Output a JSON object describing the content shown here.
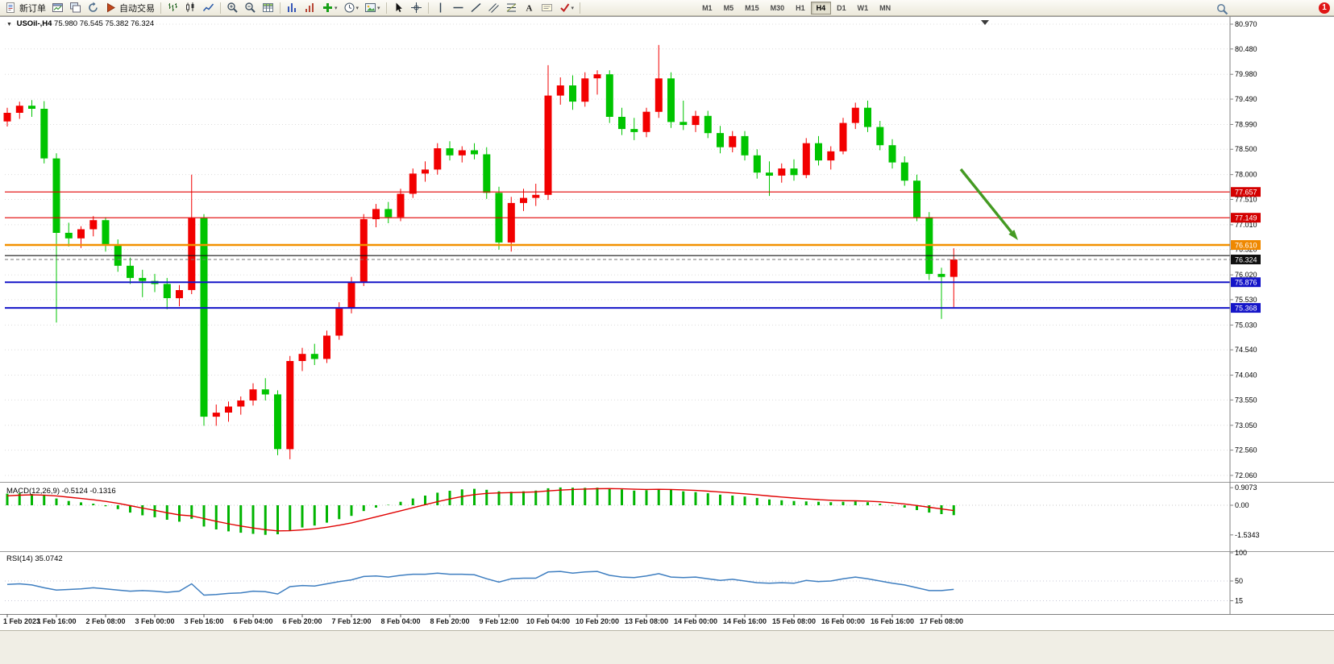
{
  "toolbar": {
    "buttons": [
      {
        "name": "new-order-button",
        "icon": "doc",
        "label": "新订单"
      },
      {
        "name": "chart-window-button",
        "icon": "window"
      },
      {
        "name": "profiles-button",
        "icon": "monitor"
      },
      {
        "name": "refresh-button",
        "icon": "refresh"
      },
      {
        "name": "auto-trading-button",
        "icon": "play",
        "label": "自动交易"
      },
      {
        "sep": true
      },
      {
        "name": "bar-chart-button",
        "icon": "bars"
      },
      {
        "name": "candlestick-chart-button",
        "icon": "candles"
      },
      {
        "name": "line-chart-button",
        "icon": "linechart"
      },
      {
        "sep": true
      },
      {
        "name": "zoom-in-button",
        "icon": "zoomin"
      },
      {
        "name": "zoom-out-button",
        "icon": "zoomout"
      },
      {
        "name": "grid-button",
        "icon": "grid"
      },
      {
        "sep": true
      },
      {
        "name": "indicator-window-button",
        "icon": "tile"
      },
      {
        "name": "arrange-window-button",
        "icon": "tile2"
      },
      {
        "name": "indicators-button",
        "icon": "addind",
        "dd": true
      },
      {
        "name": "periods-button",
        "icon": "clock",
        "dd": true
      },
      {
        "name": "templates-button",
        "icon": "template",
        "dd": true
      },
      {
        "sep": true
      },
      {
        "name": "cursor-button",
        "icon": "cursor"
      },
      {
        "name": "crosshair-button",
        "icon": "crosshair"
      },
      {
        "sep": true
      },
      {
        "name": "vertical-line-button",
        "icon": "vline"
      },
      {
        "name": "horizontal-line-button",
        "icon": "hline"
      },
      {
        "name": "trendline-button",
        "icon": "tline"
      },
      {
        "name": "channel-button",
        "icon": "channel"
      },
      {
        "name": "fibonacci-button",
        "icon": "fibo"
      },
      {
        "name": "text-button",
        "icon": "textA"
      },
      {
        "name": "text-label-button",
        "icon": "label"
      },
      {
        "name": "arrows-button",
        "icon": "arrows",
        "dd": true
      },
      {
        "sep": true
      }
    ],
    "timeframes": [
      "M1",
      "M5",
      "M15",
      "M30",
      "H1",
      "H4",
      "D1",
      "W1",
      "MN"
    ],
    "active_timeframe": "H4",
    "notification_count": "1"
  },
  "chart_header": {
    "collapse_glyph": "▼",
    "symbol_period": "USOil-,H4",
    "ohlc_text": "75.980 76.545 75.382 76.324"
  },
  "indicators": {
    "macd": {
      "label": "MACD(12,26,9) -0.5124 -0.1316",
      "scale": [
        "0.9073",
        "0.00",
        "-1.5343"
      ]
    },
    "rsi": {
      "label": "RSI(14) 35.0742",
      "scale": [
        "100",
        "50",
        "15"
      ]
    }
  },
  "price_scale": [
    "80.970",
    "80.480",
    "79.980",
    "79.490",
    "78.990",
    "78.500",
    "78.000",
    "77.510",
    "77.010",
    "76.520",
    "76.020",
    "75.530",
    "75.030",
    "74.540",
    "74.040",
    "73.550",
    "73.050",
    "72.560",
    "72.060"
  ],
  "time_labels": [
    "1 Feb 2023",
    "1 Feb 16:00",
    "2 Feb 08:00",
    "3 Feb 00:00",
    "3 Feb 16:00",
    "6 Feb 04:00",
    "6 Feb 20:00",
    "7 Feb 12:00",
    "8 Feb 04:00",
    "8 Feb 20:00",
    "9 Feb 12:00",
    "10 Feb 04:00",
    "10 Feb 20:00",
    "13 Feb 08:00",
    "14 Feb 00:00",
    "14 Feb 16:00",
    "15 Feb 08:00",
    "16 Feb 00:00",
    "16 Feb 16:00",
    "17 Feb 08:00"
  ],
  "hlines": [
    {
      "label": "77.657",
      "price": 77.657,
      "color": "#e00000",
      "width": 1.2,
      "badge": "#d40000"
    },
    {
      "label": "77.149",
      "price": 77.149,
      "color": "#e00000",
      "width": 1.2,
      "badge": "#d40000"
    },
    {
      "label": "76.610",
      "price": 76.61,
      "color": "#f29100",
      "width": 2.4,
      "badge": "#ef8800"
    },
    {
      "price": 76.4,
      "color": "#141414",
      "width": 1.2
    },
    {
      "label": "75.876",
      "price": 75.876,
      "color": "#1515c8",
      "width": 2,
      "badge": "#1515c8"
    },
    {
      "label": "75.368",
      "price": 75.368,
      "color": "#1515c8",
      "width": 2,
      "badge": "#1515c8"
    }
  ],
  "current_price": {
    "label": "76.324",
    "price": 76.324,
    "badge": "#101010"
  },
  "arrow_annotation": {
    "color": "#449a22"
  },
  "chart_data": {
    "type": "candlestick",
    "symbol": "USOil-",
    "period": "H4",
    "ylim": [
      72.06,
      80.97
    ],
    "up_color": "#f20000",
    "down_color": "#00c400",
    "candles": [
      [
        79.05,
        79.32,
        78.95,
        79.22
      ],
      [
        79.22,
        79.44,
        79.1,
        79.36
      ],
      [
        79.36,
        79.47,
        79.14,
        79.3
      ],
      [
        79.3,
        79.45,
        78.22,
        78.32
      ],
      [
        78.32,
        78.42,
        75.08,
        76.85
      ],
      [
        76.85,
        77.05,
        76.58,
        76.74
      ],
      [
        76.74,
        76.98,
        76.55,
        76.92
      ],
      [
        76.92,
        77.18,
        76.78,
        77.1
      ],
      [
        77.1,
        77.16,
        76.48,
        76.6
      ],
      [
        76.6,
        76.72,
        76.08,
        76.2
      ],
      [
        76.2,
        76.36,
        75.84,
        75.96
      ],
      [
        75.96,
        76.12,
        75.58,
        75.9
      ],
      [
        75.9,
        76.04,
        75.68,
        75.84
      ],
      [
        75.84,
        75.96,
        75.34,
        75.56
      ],
      [
        75.56,
        75.82,
        75.4,
        75.72
      ],
      [
        75.72,
        78.0,
        75.64,
        77.14
      ],
      [
        77.14,
        77.22,
        73.04,
        73.22
      ],
      [
        73.22,
        73.46,
        73.04,
        73.3
      ],
      [
        73.3,
        73.52,
        73.12,
        73.42
      ],
      [
        73.42,
        73.62,
        73.26,
        73.54
      ],
      [
        73.54,
        73.88,
        73.44,
        73.76
      ],
      [
        73.76,
        73.98,
        73.54,
        73.66
      ],
      [
        73.66,
        73.74,
        72.46,
        72.58
      ],
      [
        72.58,
        74.42,
        72.38,
        74.32
      ],
      [
        74.32,
        74.58,
        74.12,
        74.46
      ],
      [
        74.46,
        74.66,
        74.24,
        74.36
      ],
      [
        74.36,
        74.92,
        74.28,
        74.82
      ],
      [
        74.82,
        75.48,
        74.74,
        75.36
      ],
      [
        75.36,
        75.98,
        75.26,
        75.88
      ],
      [
        75.88,
        77.22,
        75.8,
        77.12
      ],
      [
        77.12,
        77.42,
        76.96,
        77.32
      ],
      [
        77.32,
        77.46,
        77.04,
        77.16
      ],
      [
        77.16,
        77.72,
        77.08,
        77.62
      ],
      [
        77.62,
        78.12,
        77.54,
        78.02
      ],
      [
        78.02,
        78.26,
        77.86,
        78.1
      ],
      [
        78.1,
        78.62,
        78.0,
        78.52
      ],
      [
        78.52,
        78.66,
        78.28,
        78.38
      ],
      [
        78.38,
        78.56,
        78.24,
        78.48
      ],
      [
        78.48,
        78.62,
        78.3,
        78.4
      ],
      [
        78.4,
        78.54,
        77.52,
        77.64
      ],
      [
        77.64,
        77.76,
        76.52,
        76.66
      ],
      [
        76.66,
        77.56,
        76.48,
        77.44
      ],
      [
        77.44,
        77.72,
        77.28,
        77.54
      ],
      [
        77.54,
        77.82,
        77.38,
        77.6
      ],
      [
        77.6,
        80.16,
        77.5,
        79.56
      ],
      [
        79.56,
        79.92,
        79.38,
        79.76
      ],
      [
        79.76,
        79.96,
        79.28,
        79.44
      ],
      [
        79.44,
        80.02,
        79.34,
        79.9
      ],
      [
        79.9,
        80.06,
        79.58,
        79.98
      ],
      [
        79.98,
        80.06,
        79.02,
        79.14
      ],
      [
        79.14,
        79.32,
        78.78,
        78.9
      ],
      [
        78.9,
        79.12,
        78.68,
        78.84
      ],
      [
        78.84,
        79.32,
        78.74,
        79.24
      ],
      [
        79.24,
        80.56,
        79.12,
        79.9
      ],
      [
        79.9,
        80.02,
        78.92,
        79.04
      ],
      [
        79.04,
        79.46,
        78.88,
        78.98
      ],
      [
        78.98,
        79.26,
        78.84,
        79.16
      ],
      [
        79.16,
        79.26,
        78.72,
        78.82
      ],
      [
        78.82,
        78.96,
        78.42,
        78.54
      ],
      [
        78.54,
        78.86,
        78.44,
        78.76
      ],
      [
        78.76,
        78.86,
        78.28,
        78.38
      ],
      [
        78.38,
        78.5,
        77.92,
        78.04
      ],
      [
        78.04,
        78.26,
        77.58,
        77.98
      ],
      [
        77.98,
        78.22,
        77.84,
        78.12
      ],
      [
        78.12,
        78.3,
        77.88,
        77.99
      ],
      [
        77.99,
        78.72,
        77.93,
        78.62
      ],
      [
        78.62,
        78.76,
        78.18,
        78.28
      ],
      [
        78.28,
        78.56,
        78.1,
        78.46
      ],
      [
        78.46,
        79.12,
        78.4,
        79.02
      ],
      [
        79.02,
        79.42,
        78.9,
        79.32
      ],
      [
        79.32,
        79.46,
        78.84,
        78.94
      ],
      [
        78.94,
        79.06,
        78.48,
        78.58
      ],
      [
        78.58,
        78.7,
        78.12,
        78.24
      ],
      [
        78.24,
        78.36,
        77.78,
        77.88
      ],
      [
        77.88,
        78.0,
        77.08,
        77.16
      ],
      [
        77.16,
        77.26,
        75.92,
        76.04
      ],
      [
        76.04,
        76.16,
        75.15,
        75.98
      ],
      [
        75.98,
        76.545,
        75.382,
        76.324
      ]
    ],
    "macd_values": [
      0.6,
      0.62,
      0.58,
      0.5,
      0.35,
      0.22,
      0.15,
      0.08,
      -0.05,
      -0.2,
      -0.38,
      -0.52,
      -0.62,
      -0.75,
      -0.85,
      -0.7,
      -1.1,
      -1.25,
      -1.35,
      -1.42,
      -1.48,
      -1.53,
      -1.5,
      -1.3,
      -1.15,
      -1.05,
      -0.9,
      -0.72,
      -0.55,
      -0.3,
      -0.12,
      0.02,
      0.18,
      0.35,
      0.5,
      0.65,
      0.75,
      0.82,
      0.85,
      0.8,
      0.72,
      0.7,
      0.72,
      0.76,
      0.88,
      0.92,
      0.91,
      0.9,
      0.91,
      0.88,
      0.82,
      0.76,
      0.78,
      0.85,
      0.8,
      0.72,
      0.68,
      0.62,
      0.55,
      0.5,
      0.45,
      0.38,
      0.3,
      0.26,
      0.22,
      0.2,
      0.18,
      0.16,
      0.18,
      0.2,
      0.16,
      0.08,
      -0.02,
      -0.12,
      -0.25,
      -0.38,
      -0.46,
      -0.5124
    ],
    "rsi_values": [
      44,
      45,
      43,
      38,
      34,
      35,
      36,
      38,
      36,
      34,
      32,
      33,
      32,
      30,
      32,
      45,
      25,
      26,
      28,
      29,
      32,
      31,
      27,
      40,
      42,
      41,
      45,
      49,
      52,
      58,
      59,
      57,
      60,
      62,
      62,
      64,
      62,
      62,
      61,
      54,
      48,
      54,
      55,
      55,
      66,
      67,
      64,
      66,
      67,
      60,
      57,
      56,
      59,
      63,
      57,
      56,
      57,
      54,
      51,
      53,
      50,
      47,
      46,
      47,
      46,
      51,
      49,
      50,
      54,
      57,
      54,
      50,
      46,
      43,
      38,
      33,
      33,
      35.0742
    ]
  }
}
